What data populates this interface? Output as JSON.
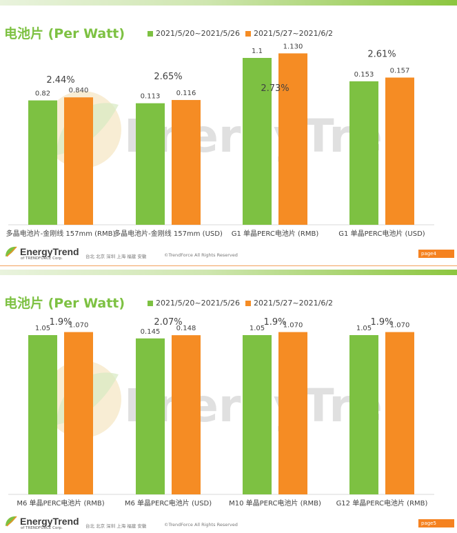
{
  "colors": {
    "green": "#7dc142",
    "orange": "#f58c24",
    "title_green": "#7dc142",
    "page_tag": "#f58220"
  },
  "legend": {
    "series1": "2021/5/20~2021/5/26",
    "series2": "2021/5/27~2021/6/2"
  },
  "watermark": "EnergyTrend",
  "footer": {
    "logo_text": "EnergyTrend",
    "logo_sub": "of TRENDFORCE Corp.",
    "cities": "台北  北京  深圳  上海  福建  安徽",
    "copyright": "©TrendForce All Rights Reserved"
  },
  "slides": [
    {
      "title": "电池片 (Per Watt)",
      "page_label": "page4",
      "chart_data": {
        "type": "bar",
        "title": "电池片 (Per Watt)",
        "categories": [
          "多晶电池片-金刚线 157mm (RMB)",
          "多晶电池片-金刚线 157mm (USD)",
          "G1 单晶PERC电池片 (RMB)",
          "G1 单晶PERC电池片  (USD)"
        ],
        "series": [
          {
            "name": "2021/5/20~2021/5/26",
            "values": [
              0.82,
              0.113,
              1.1,
              0.153
            ],
            "labels": [
              "0.82",
              "0.113",
              "1.1",
              "0.153"
            ]
          },
          {
            "name": "2021/5/27~2021/6/2",
            "values": [
              0.84,
              0.116,
              1.13,
              0.157
            ],
            "labels": [
              "0.840",
              "0.116",
              "1.130",
              "0.157"
            ]
          }
        ],
        "changes": [
          "2.44%",
          "2.65%",
          "2.73%",
          "2.61%"
        ],
        "legend_position": "top"
      }
    },
    {
      "title": "电池片 (Per Watt)",
      "page_label": "page5",
      "chart_data": {
        "type": "bar",
        "title": "电池片 (Per Watt)",
        "categories": [
          "M6 单晶PERC电池片 (RMB)",
          "M6 单晶PERC电池片 (USD)",
          "M10 单晶PERC电池片 (RMB)",
          "G12 单晶PERC电池片 (RMB)"
        ],
        "series": [
          {
            "name": "2021/5/20~2021/5/26",
            "values": [
              1.05,
              0.145,
              1.05,
              1.05
            ],
            "labels": [
              "1.05",
              "0.145",
              "1.05",
              "1.05"
            ]
          },
          {
            "name": "2021/5/27~2021/6/2",
            "values": [
              1.07,
              0.148,
              1.07,
              1.07
            ],
            "labels": [
              "1.070",
              "0.148",
              "1.070",
              "1.070"
            ]
          }
        ],
        "changes": [
          "1.9%",
          "2.07%",
          "1.9%",
          "1.9%"
        ],
        "legend_position": "top"
      }
    }
  ]
}
